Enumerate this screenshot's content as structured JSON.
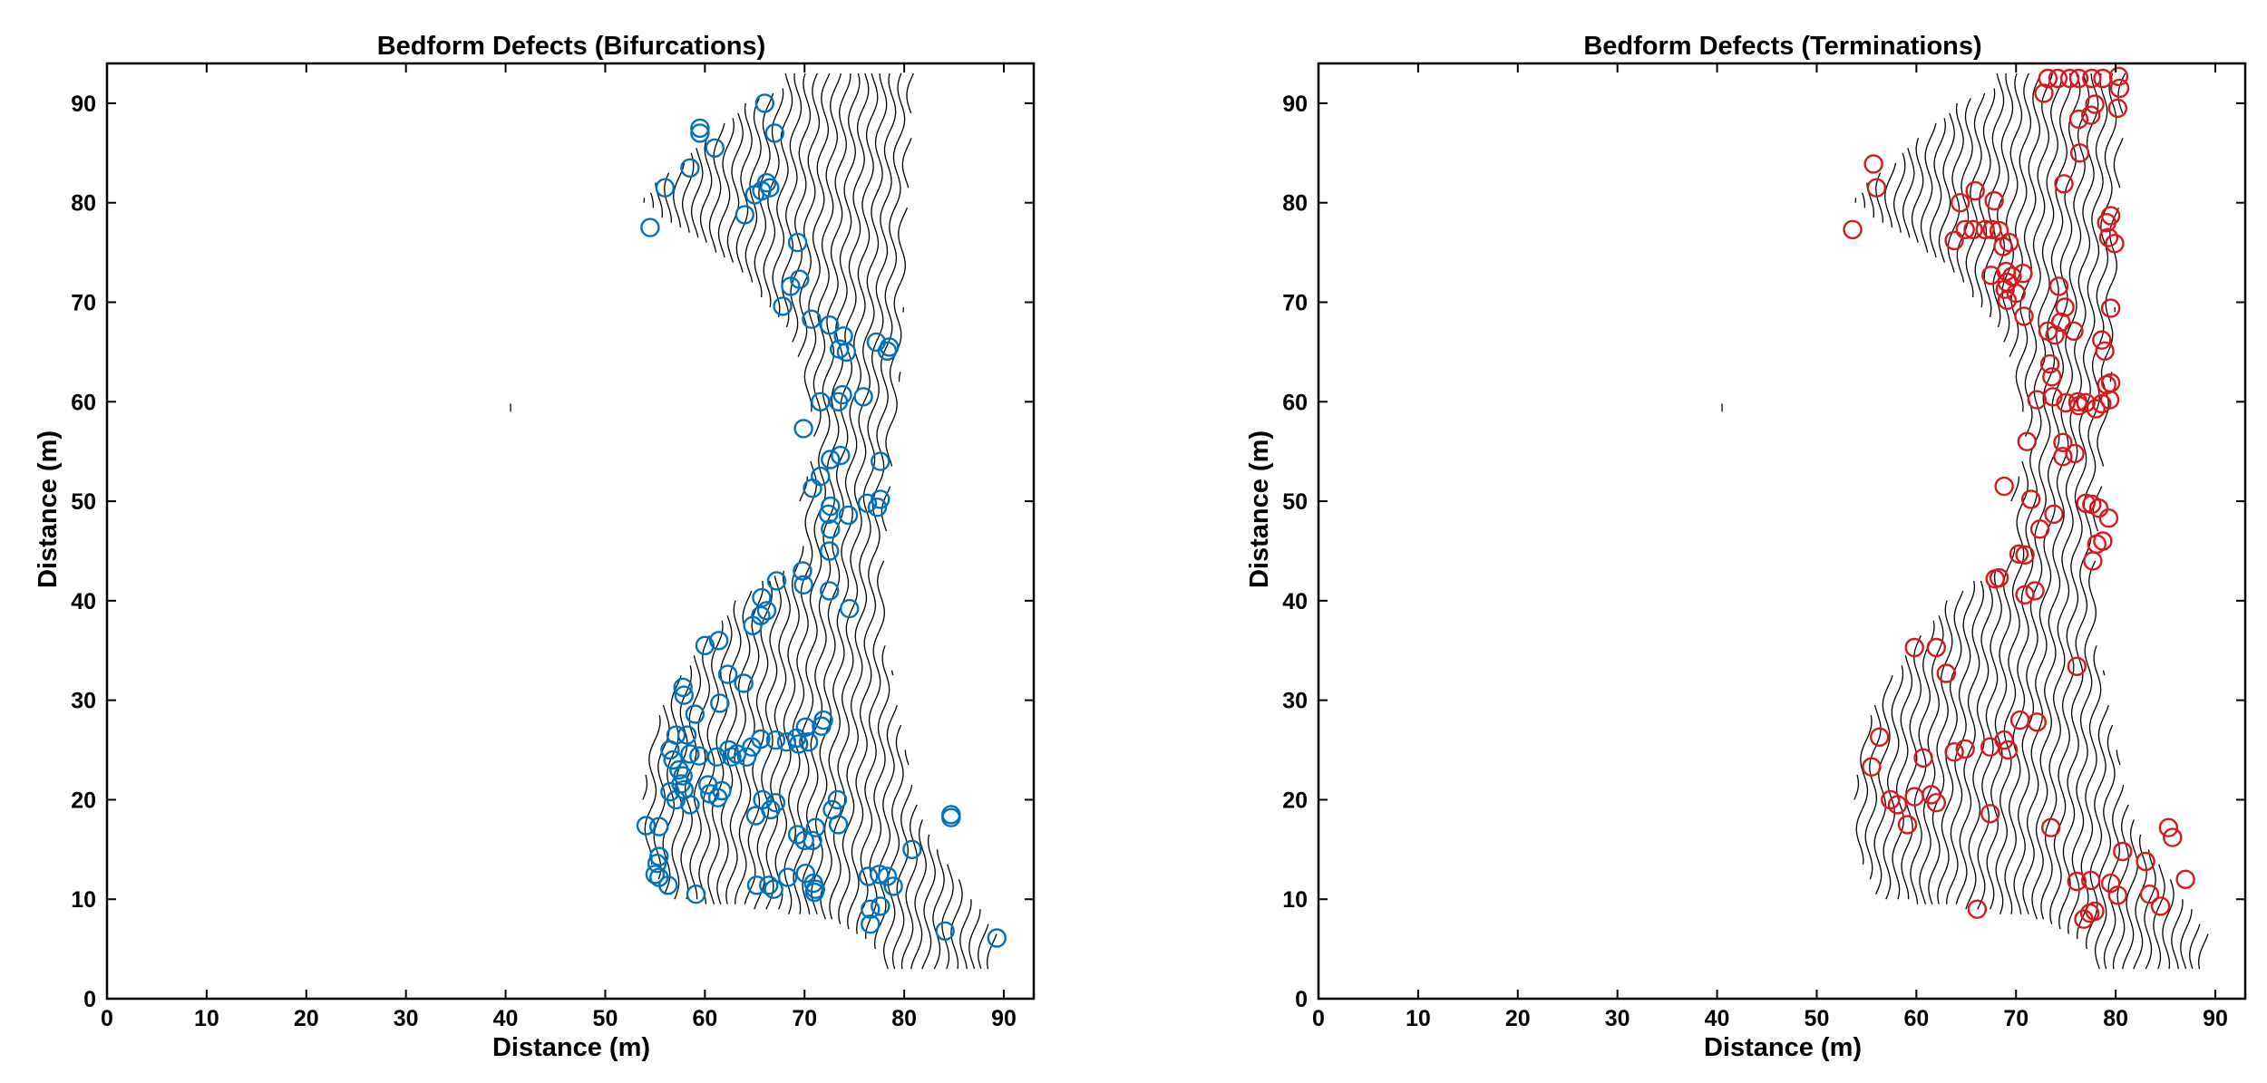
{
  "chart_data": [
    {
      "type": "scatter",
      "title": "Bedform Defects (Bifurcations)",
      "xlabel": "Distance (m)",
      "ylabel": "Distance (m)",
      "xlim": [
        0,
        93
      ],
      "ylim": [
        0,
        94
      ],
      "xticks": [
        0,
        10,
        20,
        30,
        40,
        50,
        60,
        70,
        80,
        90
      ],
      "yticks": [
        0,
        10,
        20,
        30,
        40,
        50,
        60,
        70,
        80,
        90
      ],
      "marker_color": "#0072BD",
      "marker": "open-circle",
      "background": "bedform crest lines (black)",
      "points": [
        [
          54.5,
          77.5
        ],
        [
          56,
          81.5
        ],
        [
          58.5,
          83.5
        ],
        [
          59.5,
          87
        ],
        [
          59.5,
          87.5
        ],
        [
          61,
          85.5
        ],
        [
          66,
          90
        ],
        [
          67,
          87
        ],
        [
          64,
          78.8
        ],
        [
          65,
          80.8
        ],
        [
          65.7,
          81.2
        ],
        [
          66.2,
          82
        ],
        [
          66.5,
          81.5
        ],
        [
          69.3,
          76
        ],
        [
          69.5,
          72.3
        ],
        [
          68.6,
          71.6
        ],
        [
          67.8,
          69.6
        ],
        [
          70.7,
          68.3
        ],
        [
          72.5,
          67.7
        ],
        [
          73.9,
          66.6
        ],
        [
          73.5,
          65.3
        ],
        [
          74.2,
          65
        ],
        [
          77.2,
          66
        ],
        [
          78.3,
          65.1
        ],
        [
          78.5,
          65.5
        ],
        [
          71.6,
          60
        ],
        [
          73.4,
          60
        ],
        [
          73.8,
          60.7
        ],
        [
          75.9,
          60.5
        ],
        [
          69.9,
          57.3
        ],
        [
          73.6,
          54.6
        ],
        [
          72.6,
          54.2
        ],
        [
          77.6,
          54
        ],
        [
          71.6,
          52.5
        ],
        [
          70.8,
          51.3
        ],
        [
          72.6,
          49.5
        ],
        [
          72.4,
          48.7
        ],
        [
          74.4,
          48.6
        ],
        [
          76.3,
          49.8
        ],
        [
          77.3,
          49.4
        ],
        [
          77.6,
          50.2
        ],
        [
          72.6,
          47.2
        ],
        [
          72.5,
          45
        ],
        [
          69.8,
          43
        ],
        [
          69.9,
          41.6
        ],
        [
          67.2,
          42
        ],
        [
          72.5,
          41
        ],
        [
          74.5,
          39.2
        ],
        [
          65.7,
          40.3
        ],
        [
          65.6,
          38.5
        ],
        [
          66.2,
          39
        ],
        [
          64.8,
          37.5
        ],
        [
          61.4,
          36
        ],
        [
          60,
          35.5
        ],
        [
          57.8,
          31.3
        ],
        [
          57.9,
          30.5
        ],
        [
          63.9,
          31.7
        ],
        [
          62.3,
          32.6
        ],
        [
          61.5,
          29.7
        ],
        [
          59,
          28.6
        ],
        [
          57.1,
          26.5
        ],
        [
          58.2,
          26.5
        ],
        [
          56.5,
          25
        ],
        [
          56.8,
          24
        ],
        [
          57.4,
          23
        ],
        [
          57.8,
          22.4
        ],
        [
          58.5,
          24.6
        ],
        [
          59.4,
          24.4
        ],
        [
          57.6,
          21.6
        ],
        [
          57.9,
          21
        ],
        [
          56.5,
          20.8
        ],
        [
          57.1,
          20
        ],
        [
          58.5,
          19.5
        ],
        [
          60.3,
          21.5
        ],
        [
          60.5,
          20.6
        ],
        [
          61.3,
          20.2
        ],
        [
          61.7,
          20.9
        ],
        [
          61.2,
          24.3
        ],
        [
          62.4,
          25
        ],
        [
          62.7,
          24.3
        ],
        [
          63.2,
          24.6
        ],
        [
          64.2,
          24.3
        ],
        [
          64.7,
          25.3
        ],
        [
          65.6,
          26.1
        ],
        [
          67.1,
          26
        ],
        [
          68.2,
          25.8
        ],
        [
          69.2,
          26.2
        ],
        [
          69.4,
          25.6
        ],
        [
          70.4,
          25.8
        ],
        [
          70.1,
          27.3
        ],
        [
          71.7,
          27.4
        ],
        [
          71.9,
          28
        ],
        [
          65.8,
          20
        ],
        [
          66.6,
          19
        ],
        [
          65.1,
          18.4
        ],
        [
          67.1,
          19.7
        ],
        [
          72.8,
          19
        ],
        [
          73.3,
          20
        ],
        [
          73.4,
          17.5
        ],
        [
          71.1,
          17.2
        ],
        [
          70,
          15.9
        ],
        [
          69.3,
          16.5
        ],
        [
          70.8,
          15.9
        ],
        [
          54.1,
          17.4
        ],
        [
          55.4,
          17.3
        ],
        [
          55.4,
          14.3
        ],
        [
          55.2,
          13.6
        ],
        [
          55,
          12.5
        ],
        [
          55.4,
          12.2
        ],
        [
          56.3,
          11.4
        ],
        [
          59.1,
          10.5
        ],
        [
          65.2,
          11.4
        ],
        [
          66.4,
          11.4
        ],
        [
          66.9,
          11
        ],
        [
          68.3,
          12.2
        ],
        [
          70.1,
          12.6
        ],
        [
          70.9,
          11.6
        ],
        [
          71.1,
          11
        ],
        [
          71,
          10.7
        ],
        [
          76.4,
          12.3
        ],
        [
          77.5,
          12.5
        ],
        [
          78.3,
          12.3
        ],
        [
          78.9,
          11.3
        ],
        [
          80.8,
          15
        ],
        [
          76.6,
          9
        ],
        [
          77.6,
          9.3
        ],
        [
          76.6,
          7.5
        ],
        [
          84.7,
          18.5
        ],
        [
          84.7,
          18.2
        ],
        [
          84.1,
          6.8
        ],
        [
          89.3,
          6.1
        ]
      ]
    },
    {
      "type": "scatter",
      "title": "Bedform Defects (Terminations)",
      "xlabel": "Distance (m)",
      "ylabel": "Distance (m)",
      "xlim": [
        0,
        93
      ],
      "ylim": [
        0,
        94
      ],
      "xticks": [
        0,
        10,
        20,
        30,
        40,
        50,
        60,
        70,
        80,
        90
      ],
      "yticks": [
        0,
        10,
        20,
        30,
        40,
        50,
        60,
        70,
        80,
        90
      ],
      "marker_color": "#D7191C",
      "marker": "open-circle",
      "background": "bedform crest lines (black)",
      "points": [
        [
          73.2,
          92.5
        ],
        [
          74.2,
          92.5
        ],
        [
          75.4,
          92.5
        ],
        [
          76.3,
          92.5
        ],
        [
          77.6,
          92.5
        ],
        [
          78.7,
          92.5
        ],
        [
          80.3,
          92.7
        ],
        [
          72.8,
          91
        ],
        [
          80.4,
          91.5
        ],
        [
          77.9,
          89.9
        ],
        [
          80.2,
          89.5
        ],
        [
          76.3,
          88.4
        ],
        [
          77.5,
          88.8
        ],
        [
          76.4,
          85
        ],
        [
          55.7,
          83.9
        ],
        [
          56,
          81.5
        ],
        [
          65.9,
          81.2
        ],
        [
          64.4,
          80
        ],
        [
          67.8,
          80.2
        ],
        [
          74.8,
          81.9
        ],
        [
          53.6,
          77.3
        ],
        [
          64.9,
          77.3
        ],
        [
          65.7,
          77.3
        ],
        [
          66.9,
          77.3
        ],
        [
          67.6,
          77.3
        ],
        [
          68.3,
          77.2
        ],
        [
          79.5,
          78.7
        ],
        [
          79.1,
          78
        ],
        [
          63.8,
          76.2
        ],
        [
          68.7,
          75.6
        ],
        [
          69.3,
          76
        ],
        [
          79.3,
          76.5
        ],
        [
          79.9,
          75.9
        ],
        [
          69,
          73.1
        ],
        [
          69.6,
          72.6
        ],
        [
          70.7,
          72.9
        ],
        [
          69.1,
          72
        ],
        [
          67.5,
          72.7
        ],
        [
          68.9,
          71.3
        ],
        [
          70,
          70.9
        ],
        [
          69.1,
          70.2
        ],
        [
          74.3,
          71.6
        ],
        [
          74.9,
          69.5
        ],
        [
          79.5,
          69.4
        ],
        [
          70.8,
          68.6
        ],
        [
          74.5,
          68
        ],
        [
          73.2,
          67.1
        ],
        [
          73.9,
          66.7
        ],
        [
          75.8,
          67.1
        ],
        [
          78.6,
          66.2
        ],
        [
          78.9,
          65.1
        ],
        [
          73.4,
          63.8
        ],
        [
          73.6,
          62.5
        ],
        [
          79.1,
          61.7
        ],
        [
          79.5,
          61.9
        ],
        [
          73.7,
          60.5
        ],
        [
          72.1,
          60.2
        ],
        [
          75,
          59.9
        ],
        [
          76.2,
          60
        ],
        [
          76.3,
          59.6
        ],
        [
          77,
          59.9
        ],
        [
          78,
          59.3
        ],
        [
          78.6,
          59.8
        ],
        [
          79.4,
          60.2
        ],
        [
          71.1,
          56
        ],
        [
          74.7,
          55.9
        ],
        [
          74.7,
          54.5
        ],
        [
          75.9,
          54.8
        ],
        [
          68.8,
          51.5
        ],
        [
          71.5,
          50.2
        ],
        [
          77,
          49.8
        ],
        [
          77.6,
          49.7
        ],
        [
          78.3,
          49.3
        ],
        [
          79.3,
          48.3
        ],
        [
          73.8,
          48.7
        ],
        [
          72.4,
          47.2
        ],
        [
          78.1,
          45.7
        ],
        [
          78.7,
          46
        ],
        [
          77.7,
          44
        ],
        [
          70.3,
          44.7
        ],
        [
          70.9,
          44.6
        ],
        [
          70.9,
          40.6
        ],
        [
          71.9,
          41
        ],
        [
          67.9,
          42.2
        ],
        [
          68.3,
          42.3
        ],
        [
          59.8,
          35.3
        ],
        [
          62,
          35.3
        ],
        [
          63,
          32.7
        ],
        [
          76.1,
          33.4
        ],
        [
          70.4,
          28
        ],
        [
          72.1,
          27.8
        ],
        [
          56.3,
          26.3
        ],
        [
          68.8,
          26
        ],
        [
          69.2,
          25
        ],
        [
          67.4,
          25.3
        ],
        [
          64.9,
          25.1
        ],
        [
          63.8,
          24.8
        ],
        [
          60.7,
          24.2
        ],
        [
          55.5,
          23.3
        ],
        [
          57.4,
          20
        ],
        [
          58.1,
          19.5
        ],
        [
          59.8,
          20.3
        ],
        [
          61.5,
          20.5
        ],
        [
          62,
          19.7
        ],
        [
          59.1,
          17.5
        ],
        [
          67.4,
          18.6
        ],
        [
          73.5,
          17.2
        ],
        [
          85.3,
          17.2
        ],
        [
          85.7,
          16.2
        ],
        [
          80.7,
          14.8
        ],
        [
          83,
          13.8
        ],
        [
          87,
          12
        ],
        [
          76.1,
          11.8
        ],
        [
          77.5,
          11.9
        ],
        [
          79.5,
          11.6
        ],
        [
          83.4,
          10.5
        ],
        [
          80.2,
          10.4
        ],
        [
          84.5,
          9.3
        ],
        [
          77.4,
          8.6
        ],
        [
          77.9,
          8.8
        ],
        [
          76.8,
          8
        ],
        [
          66.1,
          9
        ]
      ]
    }
  ]
}
